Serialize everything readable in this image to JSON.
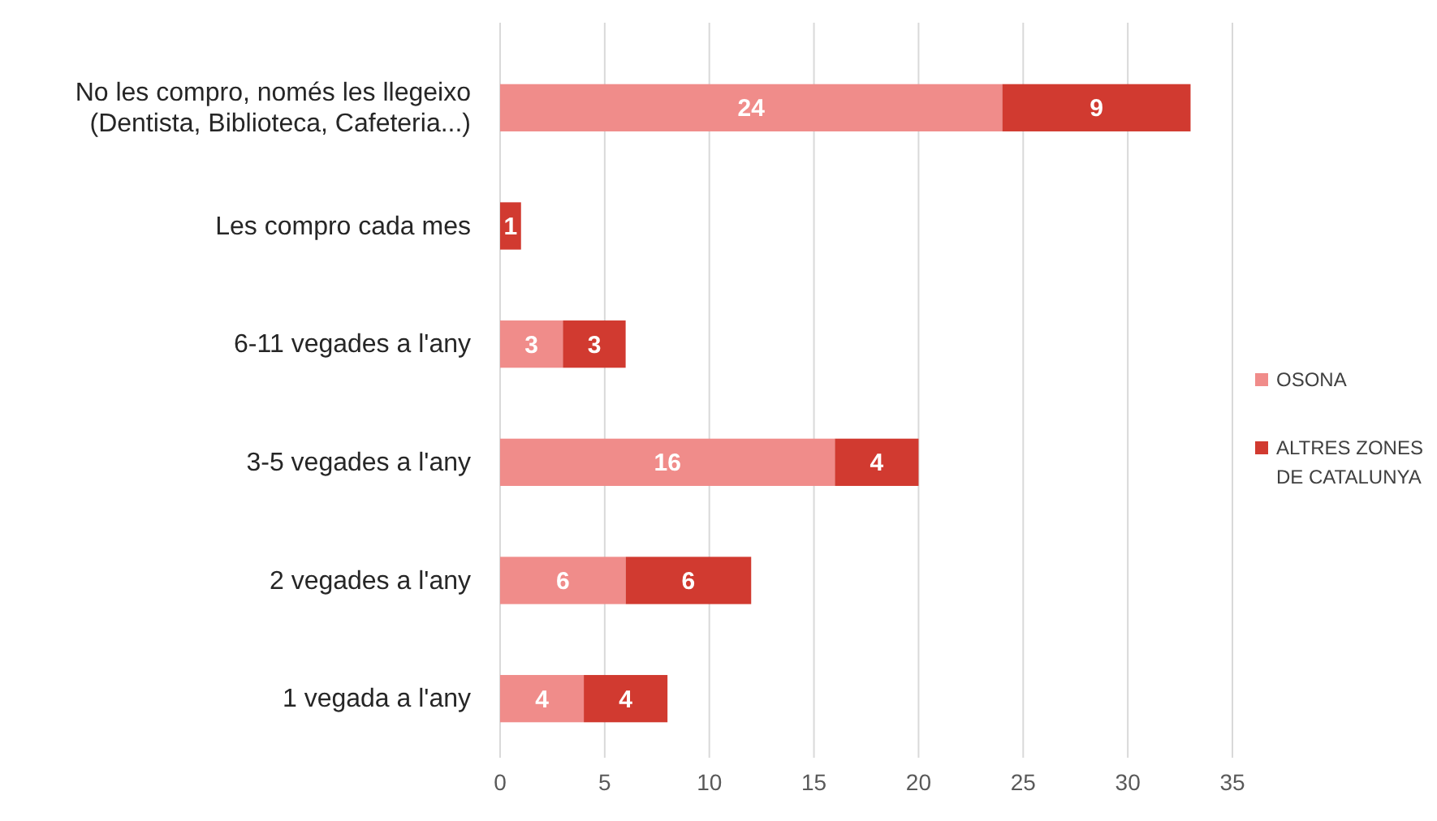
{
  "chart_data": {
    "type": "bar",
    "orientation": "horizontal",
    "stacked": true,
    "categories": [
      "No les compro, només les llegeixo (Dentista, Biblioteca, Cafeteria...)",
      "Les compro cada mes",
      "6-11 vegades a l'any",
      "3-5 vegades a l'any",
      "2 vegades a l'any",
      "1 vegada a l'any"
    ],
    "series": [
      {
        "name": "OSONA",
        "color": "#f08c8a",
        "values": [
          24,
          0,
          3,
          16,
          6,
          4
        ],
        "value_labels": [
          "24",
          null,
          "3",
          "16",
          "6",
          "4"
        ]
      },
      {
        "name": "ALTRES ZONES DE CATALUNYA",
        "color": "#d13a30",
        "values": [
          9,
          1,
          3,
          4,
          6,
          4
        ],
        "value_labels": [
          "9",
          "1",
          "3",
          "4",
          "6",
          "4"
        ]
      }
    ],
    "xlim": [
      0,
      35
    ],
    "xticks": [
      0,
      5,
      10,
      15,
      20,
      25,
      30,
      35
    ],
    "grid": "x",
    "legend": "right"
  }
}
